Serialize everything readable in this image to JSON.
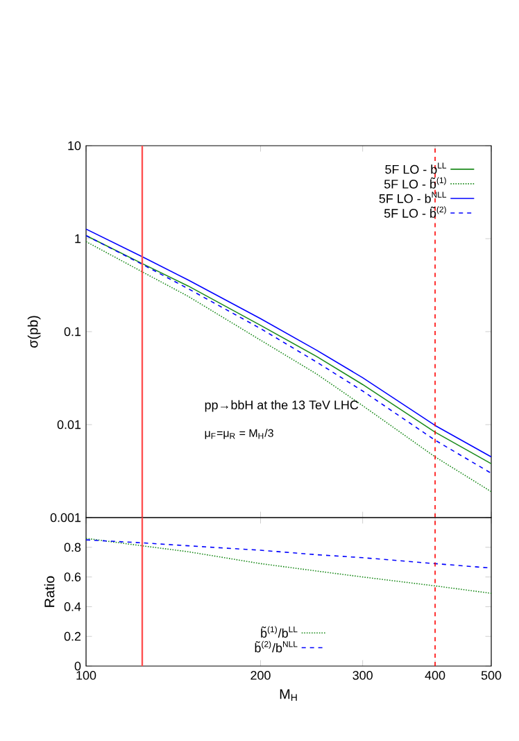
{
  "chart_data": [
    {
      "type": "line",
      "ylabel": "σ(pb)",
      "log": "xy",
      "xlim": [
        100,
        500
      ],
      "ylim": [
        0.001,
        10
      ],
      "xticks": [
        100,
        200,
        300,
        400,
        500
      ],
      "yticks": [
        0.001,
        0.01,
        0.1,
        1,
        10
      ],
      "tick_labels": "y",
      "legend": "top right",
      "grid": false,
      "x": [
        100,
        125,
        150,
        200,
        250,
        300,
        400,
        500
      ],
      "series": [
        {
          "name": "5F LO - b$^{LL}$",
          "color": "#1a8a1a",
          "line_style": "solid",
          "values": [
            1.08,
            0.54,
            0.31,
            0.117,
            0.054,
            0.027,
            0.0083,
            0.0038
          ]
        },
        {
          "name": "5F LO - b̃$^{(1)}$",
          "color": "#1a8a1a",
          "line_style": "dotted",
          "values": [
            0.93,
            0.44,
            0.24,
            0.081,
            0.035,
            0.016,
            0.0045,
            0.0019
          ]
        },
        {
          "name": "5F LO - b$^{NLL}$",
          "color": "#0000ff",
          "line_style": "solid",
          "values": [
            1.27,
            0.64,
            0.36,
            0.138,
            0.063,
            0.032,
            0.0098,
            0.0045
          ]
        },
        {
          "name": "5F LO - b̃$^{(2)}$",
          "color": "#0000ff",
          "line_style": "dashed",
          "values": [
            1.08,
            0.53,
            0.29,
            0.108,
            0.047,
            0.023,
            0.0068,
            0.003
          ]
        }
      ],
      "ref_lines": [
        {
          "axis": "x",
          "value": 125,
          "color": "#ff5050",
          "line_style": "solid"
        },
        {
          "axis": "x",
          "value": 400,
          "color": "#ff0000",
          "line_style": "dashed"
        }
      ],
      "annotations": [
        "pp→bbH at the 13 TeV LHC",
        "μ$_{F}$=μ$_{R}$ = M$_{H}$/3"
      ]
    },
    {
      "type": "line",
      "xlabel": "M$_{H}$",
      "ylabel": "Ratio",
      "log": "x",
      "xlim": [
        100,
        500
      ],
      "ylim": [
        0,
        1
      ],
      "xticks": [
        100,
        200,
        300,
        400,
        500
      ],
      "yticks": [
        0,
        0.2,
        0.4,
        0.6,
        0.8
      ],
      "legend": "bottom",
      "grid": false,
      "x": [
        100,
        125,
        150,
        200,
        250,
        300,
        400,
        500
      ],
      "series": [
        {
          "name": "b̃$^{(1)}$/b$^{LL}$",
          "color": "#1a8a1a",
          "line_style": "dotted",
          "values": [
            0.86,
            0.81,
            0.77,
            0.69,
            0.64,
            0.6,
            0.54,
            0.49
          ]
        },
        {
          "name": "b̃$^{(2)}$/b$^{NLL}$",
          "color": "#0000ff",
          "line_style": "dashed",
          "values": [
            0.85,
            0.83,
            0.81,
            0.78,
            0.75,
            0.73,
            0.69,
            0.66
          ]
        }
      ],
      "ref_lines": [
        {
          "axis": "x",
          "value": 125,
          "color": "#ff5050",
          "line_style": "solid"
        },
        {
          "axis": "x",
          "value": 400,
          "color": "#ff0000",
          "line_style": "dashed"
        }
      ]
    }
  ]
}
